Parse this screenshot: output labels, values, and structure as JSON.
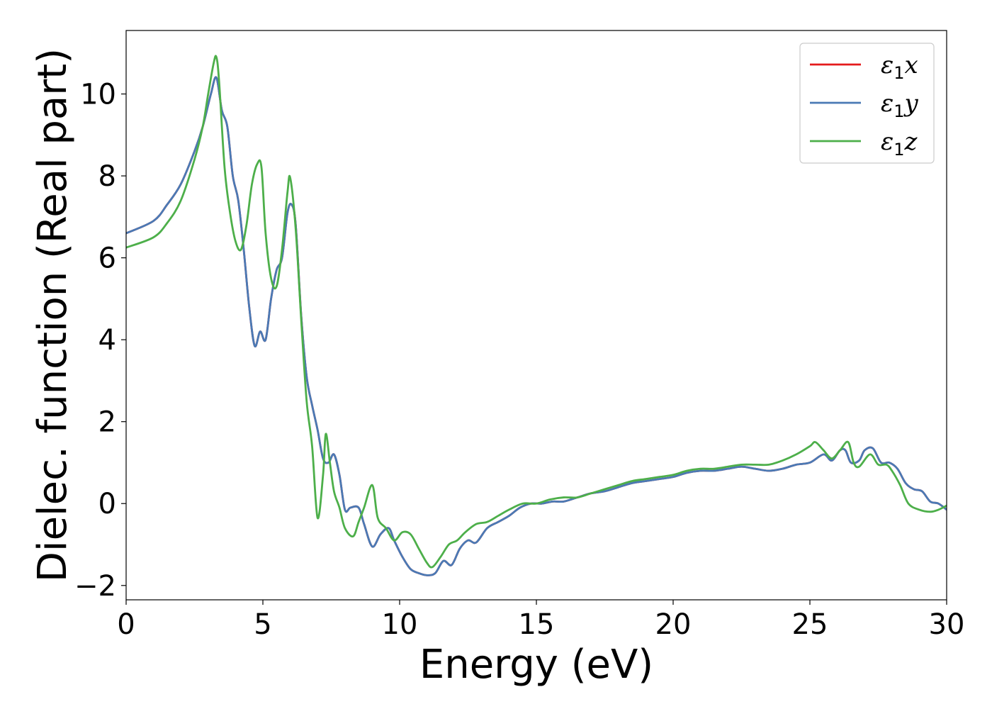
{
  "chart_data": {
    "type": "line",
    "title": "",
    "xlabel": "Energy (eV)",
    "ylabel": "Dielec. function (Real part)",
    "xlim": [
      0,
      30
    ],
    "ylim": [
      -2.35,
      11.55
    ],
    "xticks": [
      0,
      5,
      10,
      15,
      20,
      25,
      30
    ],
    "yticks": [
      -2,
      0,
      2,
      4,
      6,
      8,
      10
    ],
    "ytick_labels": [
      "−2",
      "0",
      "2",
      "4",
      "6",
      "8",
      "10"
    ],
    "grid": false,
    "legend_position": "top-right",
    "series": [
      {
        "name": "ε1x",
        "legend": {
          "base": "ε",
          "sub": "1",
          "tail": "x"
        },
        "color": "#e41a1c",
        "x": [
          0,
          1,
          1.5,
          2,
          2.5,
          2.8,
          3.1,
          3.3,
          3.5,
          3.7,
          3.9,
          4.1,
          4.3,
          4.5,
          4.7,
          4.9,
          5.1,
          5.3,
          5.5,
          5.7,
          5.9,
          6.05,
          6.2,
          6.4,
          6.6,
          6.8,
          7.0,
          7.2,
          7.4,
          7.6,
          7.8,
          8.0,
          8.2,
          8.5,
          8.7,
          9.0,
          9.3,
          9.6,
          9.8,
          10.1,
          10.4,
          10.7,
          11.0,
          11.3,
          11.6,
          11.9,
          12.2,
          12.5,
          12.8,
          13.2,
          13.6,
          14.0,
          14.4,
          14.8,
          15.2,
          15.6,
          16.0,
          16.5,
          17.0,
          17.5,
          18.0,
          18.5,
          19.0,
          19.5,
          20.0,
          20.5,
          21.0,
          21.5,
          22.0,
          22.5,
          23.0,
          23.5,
          24.0,
          24.5,
          25.0,
          25.5,
          25.8,
          26.1,
          26.3,
          26.5,
          26.8,
          27.0,
          27.3,
          27.6,
          27.9,
          28.2,
          28.5,
          28.8,
          29.1,
          29.4,
          29.7,
          30.0
        ],
        "y": [
          6.6,
          6.9,
          7.3,
          7.8,
          8.6,
          9.2,
          10.0,
          10.4,
          9.6,
          9.2,
          8.0,
          7.4,
          6.2,
          4.8,
          3.85,
          4.2,
          4.0,
          5.0,
          5.7,
          6.0,
          7.1,
          7.3,
          6.8,
          4.6,
          3.1,
          2.4,
          1.8,
          1.1,
          1.0,
          1.2,
          0.7,
          -0.15,
          -0.1,
          -0.1,
          -0.5,
          -1.05,
          -0.75,
          -0.6,
          -0.9,
          -1.3,
          -1.6,
          -1.7,
          -1.75,
          -1.7,
          -1.4,
          -1.5,
          -1.1,
          -0.9,
          -0.95,
          -0.6,
          -0.45,
          -0.3,
          -0.1,
          0.0,
          0.0,
          0.05,
          0.05,
          0.15,
          0.25,
          0.3,
          0.4,
          0.5,
          0.55,
          0.6,
          0.65,
          0.75,
          0.8,
          0.8,
          0.85,
          0.9,
          0.85,
          0.8,
          0.85,
          0.95,
          1.0,
          1.2,
          1.05,
          1.3,
          1.3,
          1.0,
          1.05,
          1.3,
          1.35,
          1.0,
          1.0,
          0.85,
          0.5,
          0.35,
          0.3,
          0.05,
          0.0,
          -0.15
        ]
      },
      {
        "name": "ε1y",
        "legend": {
          "base": "ε",
          "sub": "1",
          "tail": "y"
        },
        "color": "#4a7ab5",
        "x": [
          0,
          1,
          1.5,
          2,
          2.5,
          2.8,
          3.1,
          3.3,
          3.5,
          3.7,
          3.9,
          4.1,
          4.3,
          4.5,
          4.7,
          4.9,
          5.1,
          5.3,
          5.5,
          5.7,
          5.9,
          6.05,
          6.2,
          6.4,
          6.6,
          6.8,
          7.0,
          7.2,
          7.4,
          7.6,
          7.8,
          8.0,
          8.2,
          8.5,
          8.7,
          9.0,
          9.3,
          9.6,
          9.8,
          10.1,
          10.4,
          10.7,
          11.0,
          11.3,
          11.6,
          11.9,
          12.2,
          12.5,
          12.8,
          13.2,
          13.6,
          14.0,
          14.4,
          14.8,
          15.2,
          15.6,
          16.0,
          16.5,
          17.0,
          17.5,
          18.0,
          18.5,
          19.0,
          19.5,
          20.0,
          20.5,
          21.0,
          21.5,
          22.0,
          22.5,
          23.0,
          23.5,
          24.0,
          24.5,
          25.0,
          25.5,
          25.8,
          26.1,
          26.3,
          26.5,
          26.8,
          27.0,
          27.3,
          27.6,
          27.9,
          28.2,
          28.5,
          28.8,
          29.1,
          29.4,
          29.7,
          30.0
        ],
        "y": [
          6.6,
          6.9,
          7.3,
          7.8,
          8.6,
          9.2,
          10.0,
          10.4,
          9.6,
          9.2,
          8.0,
          7.4,
          6.2,
          4.8,
          3.85,
          4.2,
          4.0,
          5.0,
          5.7,
          6.0,
          7.1,
          7.3,
          6.8,
          4.6,
          3.1,
          2.4,
          1.8,
          1.1,
          1.0,
          1.2,
          0.7,
          -0.15,
          -0.1,
          -0.1,
          -0.5,
          -1.05,
          -0.75,
          -0.6,
          -0.9,
          -1.3,
          -1.6,
          -1.7,
          -1.75,
          -1.7,
          -1.4,
          -1.5,
          -1.1,
          -0.9,
          -0.95,
          -0.6,
          -0.45,
          -0.3,
          -0.1,
          0.0,
          0.0,
          0.05,
          0.05,
          0.15,
          0.25,
          0.3,
          0.4,
          0.5,
          0.55,
          0.6,
          0.65,
          0.75,
          0.8,
          0.8,
          0.85,
          0.9,
          0.85,
          0.8,
          0.85,
          0.95,
          1.0,
          1.2,
          1.05,
          1.3,
          1.3,
          1.0,
          1.05,
          1.3,
          1.35,
          1.0,
          1.0,
          0.85,
          0.5,
          0.35,
          0.3,
          0.05,
          0.0,
          -0.15
        ]
      },
      {
        "name": "ε1z",
        "legend": {
          "base": "ε",
          "sub": "1",
          "tail": "z"
        },
        "color": "#4daf4a",
        "x": [
          0,
          1,
          1.5,
          2,
          2.5,
          2.8,
          3.0,
          3.2,
          3.3,
          3.4,
          3.6,
          3.8,
          4.0,
          4.2,
          4.4,
          4.6,
          4.8,
          4.95,
          5.1,
          5.3,
          5.5,
          5.7,
          5.9,
          6.0,
          6.2,
          6.4,
          6.6,
          6.8,
          7.0,
          7.2,
          7.3,
          7.45,
          7.6,
          7.8,
          8.0,
          8.3,
          8.5,
          8.7,
          9.0,
          9.2,
          9.5,
          9.8,
          10.1,
          10.4,
          10.7,
          11.0,
          11.2,
          11.5,
          11.8,
          12.1,
          12.4,
          12.8,
          13.2,
          13.6,
          14.0,
          14.5,
          15.0,
          15.5,
          16.0,
          16.5,
          17.0,
          17.5,
          18.0,
          18.5,
          19.0,
          19.5,
          20.0,
          20.5,
          21.0,
          21.5,
          22.0,
          22.5,
          23.0,
          23.5,
          24.0,
          24.5,
          25.0,
          25.2,
          25.5,
          25.8,
          26.1,
          26.4,
          26.6,
          26.8,
          27.2,
          27.5,
          27.8,
          28.0,
          28.3,
          28.6,
          29.0,
          29.4,
          29.7,
          30.0
        ],
        "y": [
          6.25,
          6.5,
          6.85,
          7.4,
          8.4,
          9.2,
          10.0,
          10.75,
          10.9,
          10.3,
          8.2,
          7.1,
          6.4,
          6.2,
          6.8,
          7.8,
          8.3,
          8.2,
          6.6,
          5.5,
          5.3,
          6.2,
          7.6,
          7.95,
          6.7,
          4.5,
          2.5,
          1.4,
          -0.35,
          0.7,
          1.7,
          1.0,
          0.3,
          -0.1,
          -0.6,
          -0.8,
          -0.45,
          -0.1,
          0.45,
          -0.35,
          -0.6,
          -0.9,
          -0.7,
          -0.75,
          -1.1,
          -1.45,
          -1.55,
          -1.3,
          -1.0,
          -0.9,
          -0.7,
          -0.5,
          -0.45,
          -0.3,
          -0.15,
          0.0,
          0.0,
          0.1,
          0.15,
          0.15,
          0.25,
          0.35,
          0.45,
          0.55,
          0.6,
          0.65,
          0.7,
          0.8,
          0.85,
          0.85,
          0.9,
          0.95,
          0.95,
          0.95,
          1.05,
          1.2,
          1.4,
          1.5,
          1.3,
          1.1,
          1.3,
          1.5,
          1.0,
          0.9,
          1.2,
          0.95,
          0.95,
          0.8,
          0.45,
          0.0,
          -0.15,
          -0.2,
          -0.15,
          -0.05
        ]
      }
    ]
  }
}
